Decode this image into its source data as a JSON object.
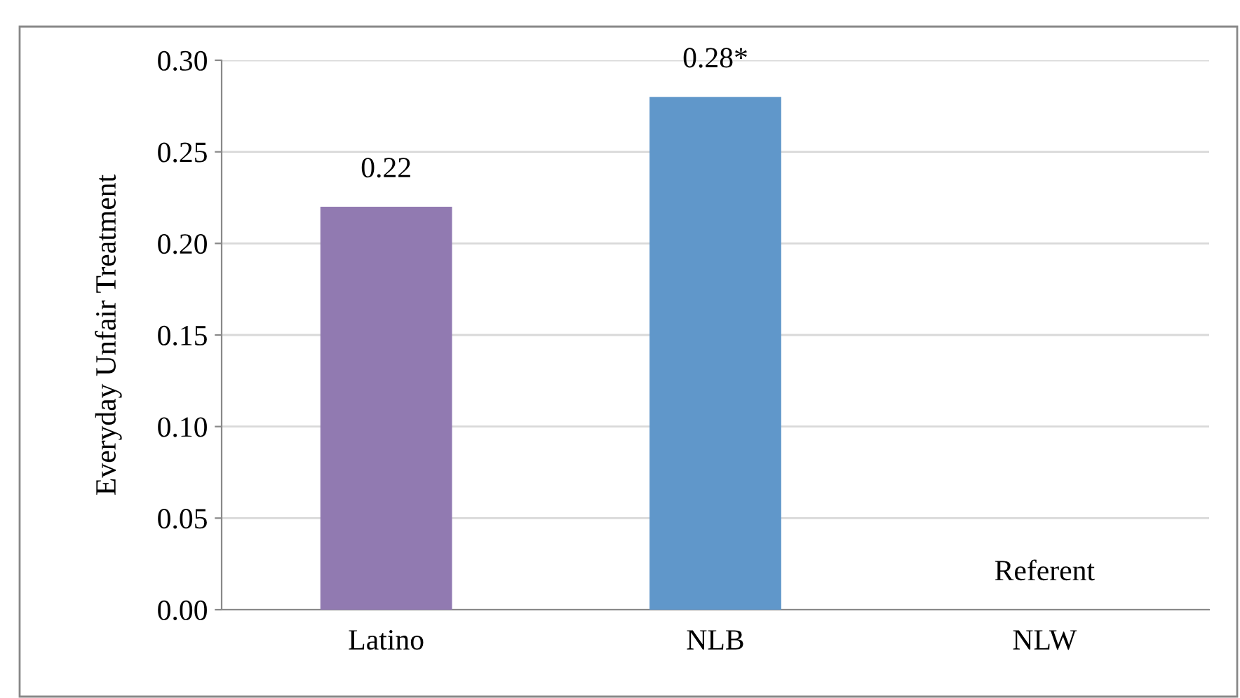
{
  "chart_data": {
    "type": "bar",
    "ylabel": "Everyday Unfair Treatment",
    "categories": [
      "Latino",
      "NLB",
      "NLW"
    ],
    "values": [
      0.22,
      0.28,
      0
    ],
    "colors": [
      "#917ab1",
      "#6097ca",
      "#6097ca"
    ],
    "value_labels": [
      "0.22",
      "0.28*",
      "Referent"
    ],
    "ylim": [
      0,
      0.3
    ],
    "yticks": [
      {
        "value": 0,
        "label": "0.00"
      },
      {
        "value": 0.05,
        "label": "0.05"
      },
      {
        "value": 0.1,
        "label": "0.10"
      },
      {
        "value": 0.15,
        "label": "0.15"
      },
      {
        "value": 0.2,
        "label": "0.20"
      },
      {
        "value": 0.25,
        "label": "0.25"
      },
      {
        "value": 0.3,
        "label": "0.30"
      }
    ],
    "grid": "y"
  }
}
